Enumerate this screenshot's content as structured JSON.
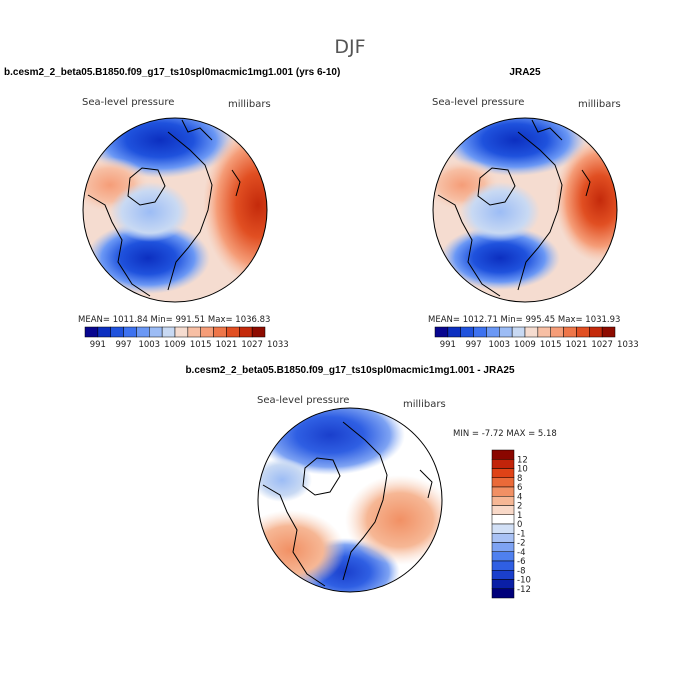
{
  "figure": {
    "season": "DJF",
    "colors": {
      "abs_scale": [
        "#08068f",
        "#0c2fc0",
        "#1f52dd",
        "#3d72f0",
        "#6b98f5",
        "#9cbcf5",
        "#c8d9f3",
        "#f5dcd0",
        "#f7bfa4",
        "#f59d78",
        "#ee7649",
        "#e14f22",
        "#c42a0b",
        "#8e0c00"
      ],
      "diff_scale": [
        "#00007a",
        "#0a1fa6",
        "#1a3fcc",
        "#2f5fe3",
        "#4f80ef",
        "#7ea3f3",
        "#a9c2f5",
        "#d2e0f6",
        "#ffffff",
        "#f9d9c8",
        "#f6b795",
        "#f19064",
        "#ea6a39",
        "#df4317",
        "#c2240a",
        "#8a0600"
      ]
    },
    "panels": [
      {
        "title": "b.cesm2_2_beta05.B1850.f09_g17_ts10spl0macmic1mg1.001 (yrs 6-10)",
        "variable_label": "Sea-level pressure",
        "units_label": "millibars",
        "stats": "MEAN= 1011.84   Min= 991.51   Max= 1036.83"
      },
      {
        "title": "JRA25",
        "variable_label": "Sea-level pressure",
        "units_label": "millibars",
        "stats": "MEAN= 1012.71   Min= 995.45   Max= 1031.93"
      },
      {
        "title": "b.cesm2_2_beta05.B1850.f09_g17_ts10spl0macmic1mg1.001 - JRA25",
        "variable_label": "Sea-level pressure",
        "units_label": "millibars",
        "stats": "MIN =   -7.72  MAX =    5.18"
      }
    ]
  },
  "chart_data": [
    {
      "type": "heatmap",
      "projection": "polar-stereographic",
      "title": "b.cesm2_2_beta05.B1850.f09_g17_ts10spl0macmic1mg1.001 (yrs 6-10)",
      "variable": "Sea-level pressure",
      "units": "millibars",
      "mean": 1011.84,
      "min": 991.51,
      "max": 1036.83,
      "colorbar_levels": [
        991,
        994,
        997,
        1000,
        1003,
        1006,
        1009,
        1012,
        1015,
        1018,
        1021,
        1024,
        1027,
        1030,
        1033
      ],
      "colorbar_tick_labels": [
        "991",
        "997",
        "1003",
        "1009",
        "1015",
        "1021",
        "1027",
        "1033"
      ]
    },
    {
      "type": "heatmap",
      "projection": "polar-stereographic",
      "title": "JRA25",
      "variable": "Sea-level pressure",
      "units": "millibars",
      "mean": 1012.71,
      "min": 995.45,
      "max": 1031.93,
      "colorbar_levels": [
        991,
        994,
        997,
        1000,
        1003,
        1006,
        1009,
        1012,
        1015,
        1018,
        1021,
        1024,
        1027,
        1030,
        1033
      ],
      "colorbar_tick_labels": [
        "991",
        "997",
        "1003",
        "1009",
        "1015",
        "1021",
        "1027",
        "1033"
      ]
    },
    {
      "type": "heatmap",
      "projection": "polar-stereographic",
      "title": "b.cesm2_2_beta05.B1850.f09_g17_ts10spl0macmic1mg1.001 - JRA25",
      "variable": "Sea-level pressure",
      "units": "millibars",
      "min": -7.72,
      "max": 5.18,
      "colorbar_levels": [
        -12,
        -10,
        -8,
        -6,
        -4,
        -2,
        -1,
        0,
        1,
        2,
        4,
        6,
        8,
        10,
        12
      ],
      "colorbar_tick_labels": [
        "12",
        "10",
        "8",
        "6",
        "4",
        "2",
        "1",
        "0",
        "-1",
        "-2",
        "-4",
        "-6",
        "-8",
        "-10",
        "-12"
      ]
    }
  ]
}
